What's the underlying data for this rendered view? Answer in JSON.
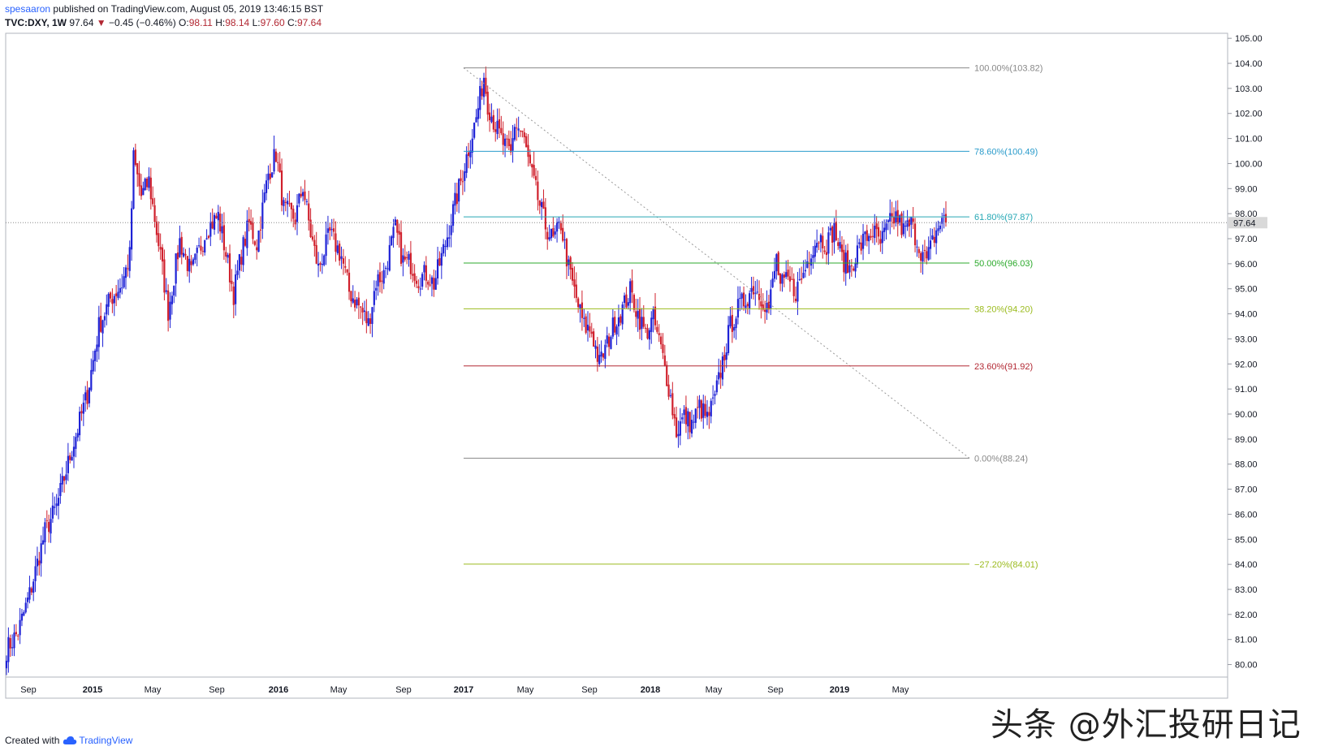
{
  "header": {
    "author": "spesaaron",
    "published_text": "published on TradingView.com, August 05, 2019 13:46:15 BST",
    "symbol": "TVC:DXY, 1W",
    "last": "97.64",
    "change": "−0.45 (−0.46%)",
    "o_label": "O:",
    "o_value": "98.11",
    "h_label": "H:",
    "h_value": "98.14",
    "l_label": "L:",
    "l_value": "97.60",
    "c_label": "C:",
    "c_value": "97.64"
  },
  "footer": {
    "created_with": "Created with",
    "brand": "TradingView"
  },
  "watermark": "头条 @外汇投研日记",
  "colors": {
    "up": "#1e22d6",
    "down": "#d0202c",
    "grid_border": "#b2b5be"
  },
  "chart_data": {
    "type": "candlestick",
    "title": "",
    "timeframe": "1W",
    "y_range": [
      79.5,
      105.2
    ],
    "y_ticks": [
      "80.00",
      "81.00",
      "82.00",
      "83.00",
      "84.00",
      "85.00",
      "86.00",
      "87.00",
      "88.00",
      "89.00",
      "90.00",
      "91.00",
      "92.00",
      "93.00",
      "94.00",
      "95.00",
      "96.00",
      "97.00",
      "98.00",
      "99.00",
      "100.00",
      "101.00",
      "102.00",
      "103.00",
      "104.00",
      "105.00"
    ],
    "last_price_label": "97.64",
    "x_labels": [
      "Sep",
      "2015",
      "May",
      "Sep",
      "2016",
      "May",
      "Sep",
      "2017",
      "May",
      "Sep",
      "2018",
      "May",
      "Sep",
      "2019",
      "May"
    ],
    "fibonacci": {
      "high": 103.82,
      "low": 88.24,
      "levels": [
        {
          "label": "100.00%(103.82)",
          "price": 103.82,
          "color": "#888888"
        },
        {
          "label": "78.60%(100.49)",
          "price": 100.49,
          "color": "#2a9bcb"
        },
        {
          "label": "61.80%(97.87)",
          "price": 97.87,
          "color": "#26a8b5"
        },
        {
          "label": "50.00%(96.03)",
          "price": 96.03,
          "color": "#2caa2c"
        },
        {
          "label": "38.20%(94.20)",
          "price": 94.2,
          "color": "#9bbb1e"
        },
        {
          "label": "23.60%(91.92)",
          "price": 91.92,
          "color": "#b22833"
        },
        {
          "label": "0.00%(88.24)",
          "price": 88.24,
          "color": "#888888"
        },
        {
          "label": "−27.20%(84.01)",
          "price": 84.01,
          "color": "#9bbb1e"
        }
      ]
    },
    "path_anchors": [
      [
        0,
        80.6
      ],
      [
        6,
        81.3
      ],
      [
        12,
        82.8
      ],
      [
        20,
        85.3
      ],
      [
        26,
        86.3
      ],
      [
        34,
        88.6
      ],
      [
        42,
        90.8
      ],
      [
        48,
        93.5
      ],
      [
        54,
        94.6
      ],
      [
        60,
        95.2
      ],
      [
        64,
        96.3
      ],
      [
        66,
        100.2
      ],
      [
        70,
        98.7
      ],
      [
        74,
        99.3
      ],
      [
        80,
        96.3
      ],
      [
        84,
        94.1
      ],
      [
        90,
        96.9
      ],
      [
        96,
        95.6
      ],
      [
        104,
        97.4
      ],
      [
        110,
        97.9
      ],
      [
        114,
        96.4
      ],
      [
        118,
        94.8
      ],
      [
        122,
        96.4
      ],
      [
        126,
        97.6
      ],
      [
        130,
        96.8
      ],
      [
        136,
        99.6
      ],
      [
        140,
        100.4
      ],
      [
        144,
        98.2
      ],
      [
        150,
        97.8
      ],
      [
        154,
        99.1
      ],
      [
        158,
        97.2
      ],
      [
        162,
        95.8
      ],
      [
        168,
        97.2
      ],
      [
        174,
        96.3
      ],
      [
        178,
        94.9
      ],
      [
        184,
        94.2
      ],
      [
        188,
        93.6
      ],
      [
        192,
        95.3
      ],
      [
        196,
        95.6
      ],
      [
        202,
        97.4
      ],
      [
        206,
        96.1
      ],
      [
        210,
        96.0
      ],
      [
        214,
        95.4
      ],
      [
        218,
        95.6
      ],
      [
        222,
        95.2
      ],
      [
        228,
        96.8
      ],
      [
        232,
        98.1
      ],
      [
        236,
        99.3
      ],
      [
        240,
        100.6
      ],
      [
        244,
        101.8
      ],
      [
        248,
        103.5
      ],
      [
        250,
        102.4
      ],
      [
        254,
        101.5
      ],
      [
        258,
        100.8
      ],
      [
        262,
        100.3
      ],
      [
        264,
        101.6
      ],
      [
        268,
        101.2
      ],
      [
        272,
        99.8
      ],
      [
        276,
        98.6
      ],
      [
        280,
        97.5
      ],
      [
        284,
        96.9
      ],
      [
        288,
        97.6
      ],
      [
        292,
        95.8
      ],
      [
        296,
        94.6
      ],
      [
        300,
        93.5
      ],
      [
        304,
        93.3
      ],
      [
        308,
        92.0
      ],
      [
        312,
        92.8
      ],
      [
        316,
        93.7
      ],
      [
        320,
        94.2
      ],
      [
        324,
        94.9
      ],
      [
        328,
        94.0
      ],
      [
        332,
        93.2
      ],
      [
        336,
        93.8
      ],
      [
        340,
        92.6
      ],
      [
        344,
        91.1
      ],
      [
        348,
        89.3
      ],
      [
        352,
        89.9
      ],
      [
        356,
        89.6
      ],
      [
        360,
        90.3
      ],
      [
        364,
        89.8
      ],
      [
        368,
        90.6
      ],
      [
        372,
        92.1
      ],
      [
        376,
        93.5
      ],
      [
        380,
        94.2
      ],
      [
        384,
        94.6
      ],
      [
        388,
        95.1
      ],
      [
        392,
        94.7
      ],
      [
        396,
        94.2
      ],
      [
        400,
        96.2
      ],
      [
        402,
        95.1
      ],
      [
        406,
        95.3
      ],
      [
        410,
        94.9
      ],
      [
        414,
        95.6
      ],
      [
        418,
        96.6
      ],
      [
        422,
        97.1
      ],
      [
        426,
        96.8
      ],
      [
        430,
        97.4
      ],
      [
        434,
        96.2
      ],
      [
        438,
        95.8
      ],
      [
        442,
        96.5
      ],
      [
        446,
        97.0
      ],
      [
        450,
        97.3
      ],
      [
        454,
        96.8
      ],
      [
        458,
        97.5
      ],
      [
        462,
        97.9
      ],
      [
        466,
        97.3
      ],
      [
        470,
        97.6
      ],
      [
        474,
        96.7
      ],
      [
        478,
        96.1
      ],
      [
        482,
        97.1
      ],
      [
        486,
        97.8
      ],
      [
        488,
        97.64
      ]
    ],
    "n_weeks": 489
  }
}
